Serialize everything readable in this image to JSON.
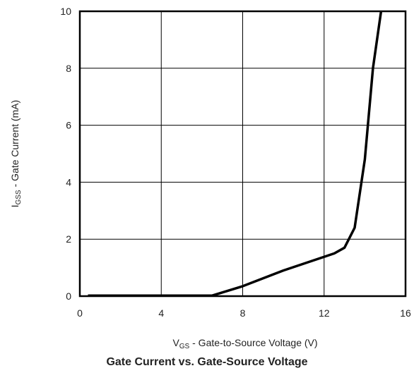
{
  "chart_data": {
    "type": "line",
    "title": "Gate Current vs. Gate-Source Voltage",
    "xlabel": {
      "main": "V",
      "sub": "GS",
      "rest": " - Gate-to-Source Voltage (V)"
    },
    "ylabel": {
      "main": "I",
      "sub": "GSS",
      "rest": " - Gate Current (mA)"
    },
    "xlim": [
      0,
      16
    ],
    "ylim": [
      0,
      10
    ],
    "xticks": [
      "0",
      "4",
      "8",
      "12",
      "16"
    ],
    "yticks": [
      "0",
      "2",
      "4",
      "6",
      "8",
      "10"
    ],
    "grid": true,
    "series": [
      {
        "x": [
          0.4,
          6.5,
          8,
          10,
          12.5,
          13,
          13.5,
          14,
          14.4,
          14.8
        ],
        "y": [
          0.02,
          0.02,
          0.35,
          0.9,
          1.5,
          1.7,
          2.4,
          4.8,
          8,
          10
        ]
      }
    ]
  }
}
